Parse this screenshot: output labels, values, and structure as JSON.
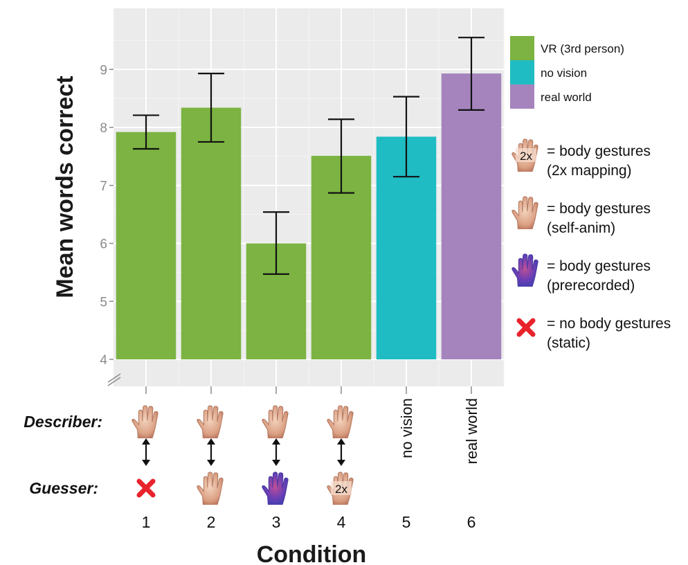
{
  "chart_data": {
    "type": "bar",
    "title": "",
    "ylabel": "Mean words correct",
    "xlabel": "Condition",
    "ylim": [
      4,
      9.6
    ],
    "yticks": [
      4,
      5,
      6,
      7,
      8,
      9
    ],
    "grid": true,
    "axis_break": true,
    "categories": [
      "1",
      "2",
      "3",
      "4",
      "5",
      "6"
    ],
    "values": [
      7.92,
      8.34,
      6.0,
      7.51,
      7.84,
      8.93
    ],
    "error_low": [
      7.63,
      7.75,
      5.47,
      6.87,
      7.15,
      8.3
    ],
    "error_high": [
      8.21,
      8.93,
      6.54,
      8.14,
      8.53,
      9.55
    ],
    "groups": [
      "VR (3rd person)",
      "VR (3rd person)",
      "VR (3rd person)",
      "VR (3rd person)",
      "no vision",
      "real world"
    ],
    "legend": {
      "placement": "right",
      "entries": [
        {
          "label": "VR (3rd person)",
          "color": "#7cb342"
        },
        {
          "label": "no vision",
          "color": "#1fbcc3"
        },
        {
          "label": "real world",
          "color": "#a584bd"
        }
      ]
    },
    "describer_row_label": "Describer:",
    "guesser_row_label": "Guesser:",
    "describer": [
      "hand-icon",
      "hand-icon",
      "hand-icon",
      "hand-icon",
      "no vision",
      "real world"
    ],
    "guesser": [
      "red-x-icon",
      "hand-icon",
      "prerecorded-hand-icon",
      "hand-2x-icon",
      "",
      ""
    ],
    "badge_2x": "2x",
    "key": [
      {
        "icon": "hand-2x-icon",
        "line1": "= body gestures",
        "line2": "(2x mapping)"
      },
      {
        "icon": "hand-icon",
        "line1": "= body gestures",
        "line2": "(self-anim)"
      },
      {
        "icon": "prerecorded-hand-icon",
        "line1": "= body gestures",
        "line2": "(prerecorded)"
      },
      {
        "icon": "red-x-icon",
        "line1": "= no body gestures",
        "line2": "(static)"
      }
    ]
  }
}
